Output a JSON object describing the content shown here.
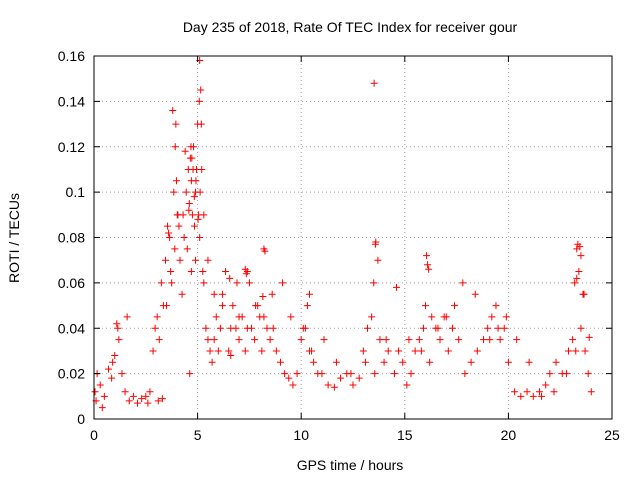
{
  "chart_data": {
    "type": "scatter",
    "title": "Day 235 of 2018, Rate Of TEC Index for receiver gour",
    "xlabel": "GPS time / hours",
    "ylabel": "ROTI / TECUs",
    "xlim": [
      0,
      25
    ],
    "ylim": [
      0,
      0.16
    ],
    "xticks": [
      "0",
      "5",
      "10",
      "15",
      "20",
      "25"
    ],
    "yticks": [
      "0",
      "0.02",
      "0.04",
      "0.06",
      "0.08",
      "0.1",
      "0.12",
      "0.14",
      "0.16"
    ],
    "grid": true,
    "marker": "plus",
    "color": "#ff0000",
    "x": [
      0.05,
      0.15,
      0.3,
      0.5,
      0.7,
      0.85,
      1.0,
      1.1,
      1.2,
      1.35,
      1.5,
      1.7,
      1.9,
      2.1,
      2.3,
      2.5,
      2.7,
      2.85,
      2.95,
      3.05,
      3.15,
      3.25,
      3.35,
      3.45,
      3.55,
      3.65,
      3.75,
      3.85,
      3.95,
      4.05,
      4.15,
      4.25,
      4.35,
      4.45,
      4.55,
      4.6,
      4.65,
      4.7,
      4.75,
      4.8,
      4.85,
      4.9,
      4.95,
      5.0,
      5.05,
      5.1,
      5.15,
      5.2,
      5.25,
      5.3,
      5.4,
      5.5,
      5.6,
      5.7,
      5.8,
      5.9,
      6.0,
      6.1,
      6.2,
      6.35,
      6.5,
      6.6,
      6.7,
      6.85,
      7.0,
      7.15,
      7.3,
      7.4,
      7.5,
      7.6,
      7.75,
      7.9,
      8.0,
      8.1,
      8.2,
      8.35,
      8.5,
      8.65,
      8.8,
      9.0,
      9.2,
      9.4,
      9.6,
      9.8,
      10.0,
      10.2,
      10.4,
      10.6,
      10.8,
      11.0,
      11.3,
      11.6,
      11.9,
      12.2,
      12.5,
      12.8,
      13.0,
      13.2,
      13.4,
      13.5,
      13.6,
      13.7,
      13.8,
      14.0,
      14.2,
      14.5,
      14.7,
      14.9,
      15.1,
      15.3,
      15.5,
      15.7,
      15.9,
      16.0,
      16.1,
      16.3,
      16.5,
      16.7,
      16.9,
      17.1,
      17.3,
      17.6,
      17.9,
      18.2,
      18.5,
      18.8,
      19.0,
      19.2,
      19.4,
      19.6,
      19.8,
      20.0,
      20.3,
      20.6,
      20.9,
      21.2,
      21.5,
      21.8,
      22.0,
      22.3,
      22.6,
      22.9,
      23.1,
      23.2,
      23.3,
      23.4,
      23.5,
      23.6,
      23.7,
      23.85,
      24.0,
      0.1,
      0.4,
      0.9,
      1.15,
      1.6,
      2.6,
      3.1,
      3.3,
      3.5,
      3.7,
      3.9,
      4.1,
      4.3,
      4.5,
      4.7,
      4.9,
      5.1,
      5.3,
      5.5,
      5.8,
      6.2,
      6.6,
      7.0,
      7.4,
      7.8,
      8.2,
      8.6,
      9.1,
      9.5,
      10.1,
      10.5,
      11.1,
      11.7,
      12.4,
      13.1,
      13.55,
      14.1,
      14.6,
      15.2,
      15.8,
      16.2,
      16.6,
      17.0,
      17.4,
      17.8,
      18.4,
      19.1,
      19.5,
      19.9,
      20.4,
      21.0,
      21.6,
      22.2,
      22.8,
      23.25,
      23.45,
      23.65,
      23.9,
      4.62,
      4.68,
      4.72,
      4.78,
      4.84,
      4.92,
      5.02,
      5.08,
      5.12,
      3.92,
      3.98,
      4.02,
      3.6,
      3.8,
      4.4,
      4.58,
      5.18,
      13.52,
      13.58,
      16.05,
      16.15,
      23.3,
      23.35,
      23.5,
      8.15,
      8.25,
      6.55,
      7.3,
      7.35,
      6.9,
      10.3,
      10.4
    ],
    "y": [
      0.012,
      0.02,
      0.015,
      0.01,
      0.022,
      0.018,
      0.028,
      0.042,
      0.035,
      0.02,
      0.012,
      0.008,
      0.01,
      0.007,
      0.009,
      0.01,
      0.012,
      0.03,
      0.04,
      0.045,
      0.035,
      0.06,
      0.05,
      0.07,
      0.085,
      0.08,
      0.06,
      0.1,
      0.13,
      0.09,
      0.07,
      0.055,
      0.08,
      0.1,
      0.11,
      0.095,
      0.115,
      0.105,
      0.09,
      0.12,
      0.085,
      0.1,
      0.11,
      0.13,
      0.09,
      0.158,
      0.145,
      0.11,
      0.065,
      0.06,
      0.04,
      0.035,
      0.03,
      0.025,
      0.035,
      0.045,
      0.03,
      0.04,
      0.055,
      0.065,
      0.03,
      0.028,
      0.05,
      0.04,
      0.035,
      0.045,
      0.03,
      0.065,
      0.06,
      0.04,
      0.035,
      0.05,
      0.045,
      0.03,
      0.075,
      0.04,
      0.035,
      0.04,
      0.03,
      0.025,
      0.02,
      0.018,
      0.015,
      0.02,
      0.035,
      0.04,
      0.03,
      0.025,
      0.02,
      0.02,
      0.015,
      0.014,
      0.018,
      0.02,
      0.015,
      0.018,
      0.03,
      0.04,
      0.045,
      0.06,
      0.078,
      0.07,
      0.035,
      0.025,
      0.03,
      0.02,
      0.03,
      0.025,
      0.015,
      0.02,
      0.03,
      0.035,
      0.04,
      0.05,
      0.068,
      0.045,
      0.04,
      0.035,
      0.045,
      0.03,
      0.04,
      0.035,
      0.02,
      0.025,
      0.03,
      0.035,
      0.04,
      0.045,
      0.05,
      0.035,
      0.04,
      0.025,
      0.012,
      0.01,
      0.012,
      0.01,
      0.012,
      0.015,
      0.02,
      0.025,
      0.02,
      0.03,
      0.035,
      0.06,
      0.075,
      0.065,
      0.04,
      0.055,
      0.03,
      0.02,
      0.012,
      0.008,
      0.005,
      0.025,
      0.04,
      0.045,
      0.007,
      0.008,
      0.009,
      0.05,
      0.065,
      0.075,
      0.085,
      0.09,
      0.075,
      0.065,
      0.07,
      0.08,
      0.09,
      0.07,
      0.055,
      0.05,
      0.04,
      0.045,
      0.04,
      0.05,
      0.045,
      0.055,
      0.06,
      0.045,
      0.04,
      0.03,
      0.035,
      0.025,
      0.02,
      0.025,
      0.02,
      0.035,
      0.058,
      0.035,
      0.03,
      0.025,
      0.04,
      0.045,
      0.05,
      0.06,
      0.055,
      0.035,
      0.04,
      0.045,
      0.035,
      0.025,
      0.01,
      0.012,
      0.02,
      0.03,
      0.076,
      0.055,
      0.036,
      0.02,
      0.12,
      0.115,
      0.11,
      0.098,
      0.105,
      0.088,
      0.14,
      0.1,
      0.12,
      0.105,
      0.09,
      0.082,
      0.136,
      0.118,
      0.092,
      0.13,
      0.148,
      0.077,
      0.072,
      0.066,
      0.062,
      0.077,
      0.072,
      0.054,
      0.074,
      0.062,
      0.066,
      0.064,
      0.06,
      0.05,
      0.055
    ]
  }
}
